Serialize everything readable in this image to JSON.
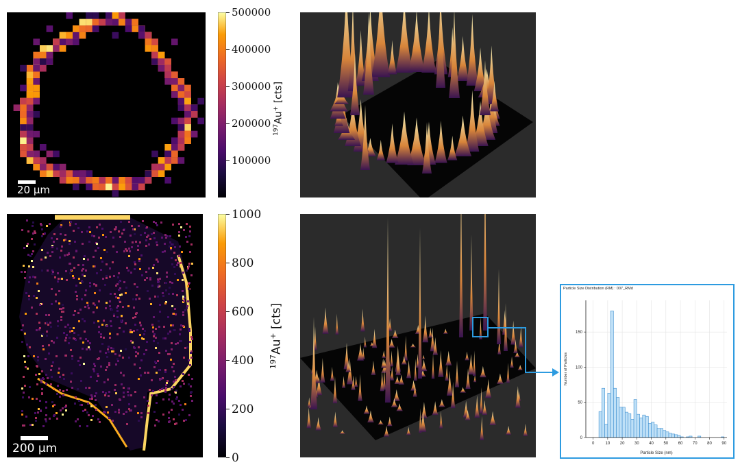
{
  "colors": {
    "colormap": "inferno",
    "accent_callout": "#2d9be0",
    "bar_fill": "#bfe0f7",
    "bar_edge": "#3d8fd0"
  },
  "top_row": {
    "map": {
      "scale_bar_label": "20 μm"
    },
    "colorbar": {
      "ticks": [
        "500000",
        "400000",
        "300000",
        "200000",
        "100000"
      ],
      "label_mass": "197",
      "label_ion": "Au",
      "label_charge": "+",
      "label_unit": "[cts]"
    }
  },
  "bottom_row": {
    "map": {
      "scale_bar_label": "200 μm"
    },
    "colorbar": {
      "ticks": [
        "1000",
        "800",
        "600",
        "400",
        "200",
        "0"
      ],
      "label_mass": "197",
      "label_ion": "Au",
      "label_charge": "+",
      "label_unit": "[cts]"
    }
  },
  "chart_data": [
    {
      "type": "heatmap",
      "colormap": "inferno",
      "colorbar_range": [
        0,
        500000
      ],
      "colorbar_ticks": [
        100000,
        200000,
        300000,
        400000,
        500000
      ],
      "colorbar_label": "197Au+ [cts]",
      "scale_bar": "20 μm"
    },
    {
      "type": "heatmap",
      "colormap": "inferno",
      "colorbar_range": [
        0,
        1000
      ],
      "colorbar_ticks": [
        0,
        200,
        400,
        600,
        800,
        1000
      ],
      "colorbar_label": "197Au+ [cts]",
      "scale_bar": "200 μm"
    },
    {
      "type": "bar",
      "title": "Particle Size Distribution (RM) : 007_RMd",
      "xlabel": "Particle Size (nm)",
      "ylabel": "Number of Particles",
      "xlim": [
        -5,
        92
      ],
      "ylim": [
        0,
        195
      ],
      "xticks": [
        0,
        10,
        20,
        30,
        40,
        50,
        60,
        70,
        80,
        90
      ],
      "yticks": [
        0,
        50,
        100,
        150
      ],
      "bin_width": 2,
      "bins_start": [
        4,
        6,
        8,
        10,
        12,
        14,
        16,
        18,
        20,
        22,
        24,
        26,
        28,
        30,
        32,
        34,
        36,
        38,
        40,
        42,
        44,
        46,
        48,
        50,
        52,
        54,
        56,
        58,
        60,
        62,
        64,
        66,
        68,
        70,
        72,
        74,
        76,
        78,
        80,
        82,
        84,
        86,
        88
      ],
      "values": [
        37,
        70,
        19,
        63,
        180,
        70,
        57,
        43,
        43,
        36,
        34,
        26,
        54,
        33,
        28,
        32,
        30,
        20,
        22,
        18,
        13,
        13,
        10,
        8,
        6,
        5,
        4,
        3,
        1,
        0,
        1,
        2,
        0,
        0,
        2,
        0,
        0,
        0,
        0,
        0,
        0,
        0,
        1
      ]
    }
  ]
}
